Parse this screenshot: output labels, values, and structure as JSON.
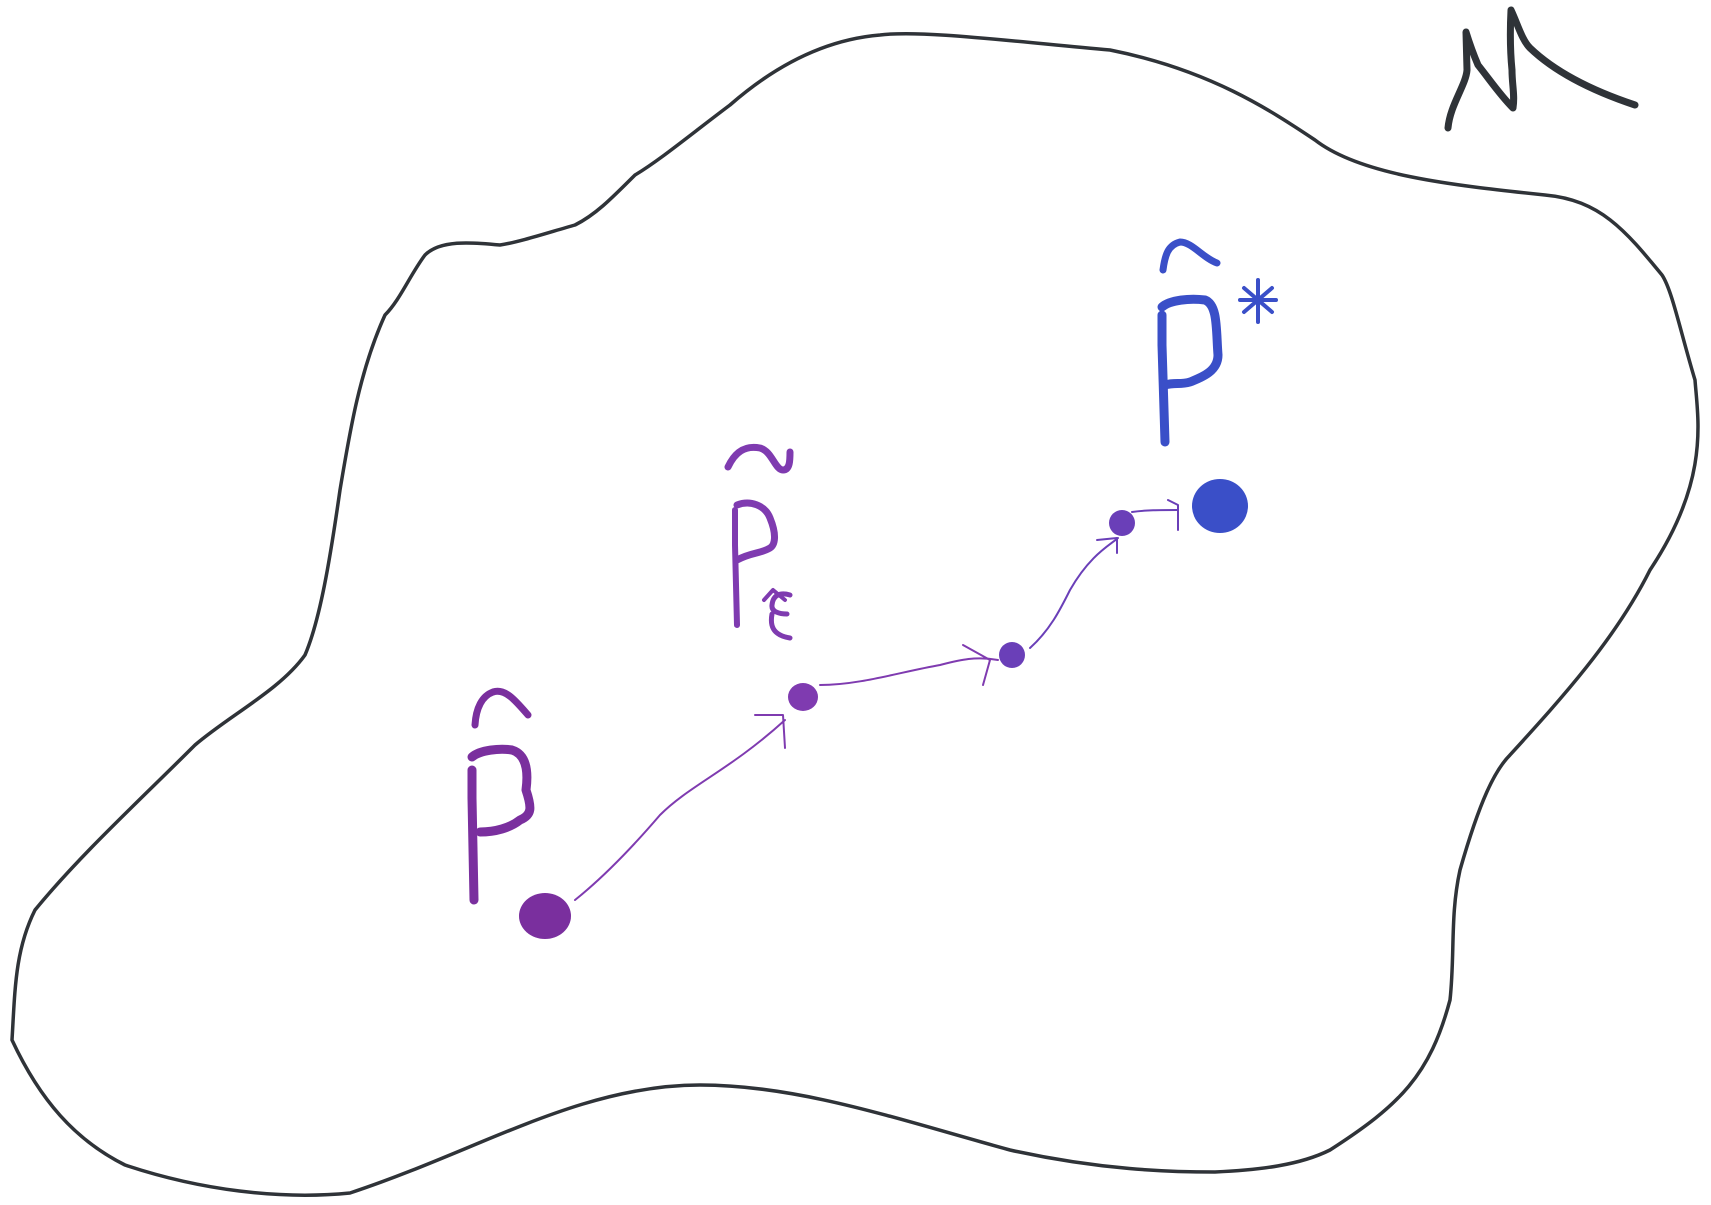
{
  "diagram": {
    "manifold_symbol": "M",
    "points": [
      {
        "id": "p_hat",
        "label": "P̂",
        "role": "start"
      },
      {
        "id": "p_tilde",
        "label": "P̃",
        "subscript": "ε̂",
        "role": "intermediate"
      },
      {
        "id": "step_2",
        "label": "",
        "role": "intermediate"
      },
      {
        "id": "step_3",
        "label": "",
        "role": "intermediate"
      },
      {
        "id": "p_hat_star",
        "label": "P̂",
        "superscript": "*",
        "role": "end"
      }
    ],
    "colors": {
      "outline": "#2f3338",
      "start": "#7a2f9e",
      "path": "#7f3bb0",
      "mid": "#6a3fb8",
      "end": "#3a4fc8"
    }
  }
}
